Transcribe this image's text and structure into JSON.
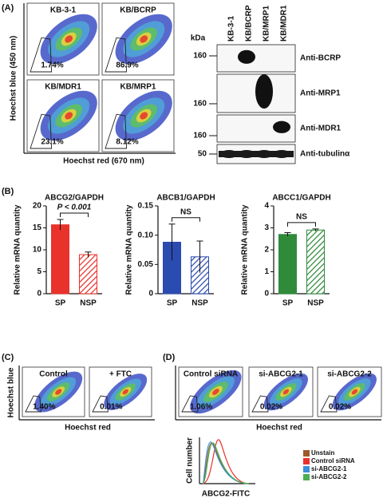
{
  "figure": {
    "panel_a": {
      "label": "(A)",
      "plots": [
        {
          "title": "KB-3-1",
          "percent": "1.74%"
        },
        {
          "title": "KB/BCRP",
          "percent": "86.9%"
        },
        {
          "title": "KB/MDR1",
          "percent": "23.1%"
        },
        {
          "title": "KB/MRP1",
          "percent": "8.12%"
        }
      ],
      "y_label": "Hoechst blue (450 nm)",
      "x_label": "Hoechst red (670 nm)",
      "blot": {
        "kda": "kDa",
        "lanes": [
          "KB-3-1",
          "KB/BCRP",
          "KB/MRP1",
          "KB/MDR1"
        ],
        "rows": [
          {
            "marker": "160",
            "antibody": "Anti-BCRP"
          },
          {
            "marker": "160",
            "antibody": "Anti-MRP1"
          },
          {
            "marker": "160",
            "antibody": "Anti-MDR1"
          },
          {
            "marker": "50",
            "antibody": "Anti-tubulinα"
          }
        ]
      }
    },
    "panel_b": {
      "label": "(B)"
    },
    "panel_c": {
      "label": "(C)",
      "plots": [
        {
          "title": "Control",
          "percent": "1.40%"
        },
        {
          "title": "+ FTC",
          "percent": "0.01%"
        }
      ],
      "y_label": "Hoechst blue",
      "x_label": "Hoechst red"
    },
    "panel_d": {
      "label": "(D)",
      "plots": [
        {
          "title": "Control siRNA",
          "percent": "1.06%"
        },
        {
          "title": "si-ABCG2-1",
          "percent": "0.02%"
        },
        {
          "title": "si-ABCG2-2",
          "percent": "0.02%"
        }
      ],
      "x_label": "Hoechst red",
      "histogram": {
        "y_label": "Cell number",
        "x_label": "ABCG2-FITC",
        "legend": [
          {
            "name": "Unstain",
            "color": "#9c5a2c"
          },
          {
            "name": "Control siRNA",
            "color": "#e8322b"
          },
          {
            "name": "si-ABCG2-1",
            "color": "#3a8fd8"
          },
          {
            "name": "si-ABCG2-2",
            "color": "#4caf50"
          }
        ]
      }
    }
  },
  "chart_data": [
    {
      "type": "bar",
      "title": "ABCG2/GAPDH",
      "y_label": "Relative mRNA quantity",
      "categories": [
        "SP",
        "NSP"
      ],
      "values": [
        15.7,
        8.9
      ],
      "errors": [
        1.2,
        0.6
      ],
      "colors": [
        "#e8322b",
        "#e8322b"
      ],
      "hatched": [
        false,
        true
      ],
      "ylim": [
        0,
        20
      ],
      "yticks": [
        0,
        5,
        10,
        15,
        20
      ],
      "annotation": "P < 0.001"
    },
    {
      "type": "bar",
      "title": "ABCB1/GAPDH",
      "y_label": "Relative mRNA quantity",
      "categories": [
        "SP",
        "NSP"
      ],
      "values": [
        0.088,
        0.063
      ],
      "errors": [
        0.031,
        0.027
      ],
      "colors": [
        "#2a4bb0",
        "#2a4bb0"
      ],
      "hatched": [
        false,
        true
      ],
      "ylim": [
        0,
        0.15
      ],
      "yticks": [
        0,
        0.05,
        {
          "value": 0.1,
          "label": "0.10"
        },
        0.15
      ],
      "annotation": "NS"
    },
    {
      "type": "bar",
      "title": "ABCC1/GAPDH",
      "y_label": "Relative mRNA quantity",
      "categories": [
        "SP",
        "NSP"
      ],
      "values": [
        2.7,
        2.9
      ],
      "errors": [
        0.08,
        0.05
      ],
      "colors": [
        "#2f8a3a",
        "#2f8a3a"
      ],
      "hatched": [
        false,
        true
      ],
      "ylim": [
        0,
        4
      ],
      "yticks": [
        0,
        1,
        2,
        3,
        4
      ],
      "annotation": "NS"
    }
  ]
}
